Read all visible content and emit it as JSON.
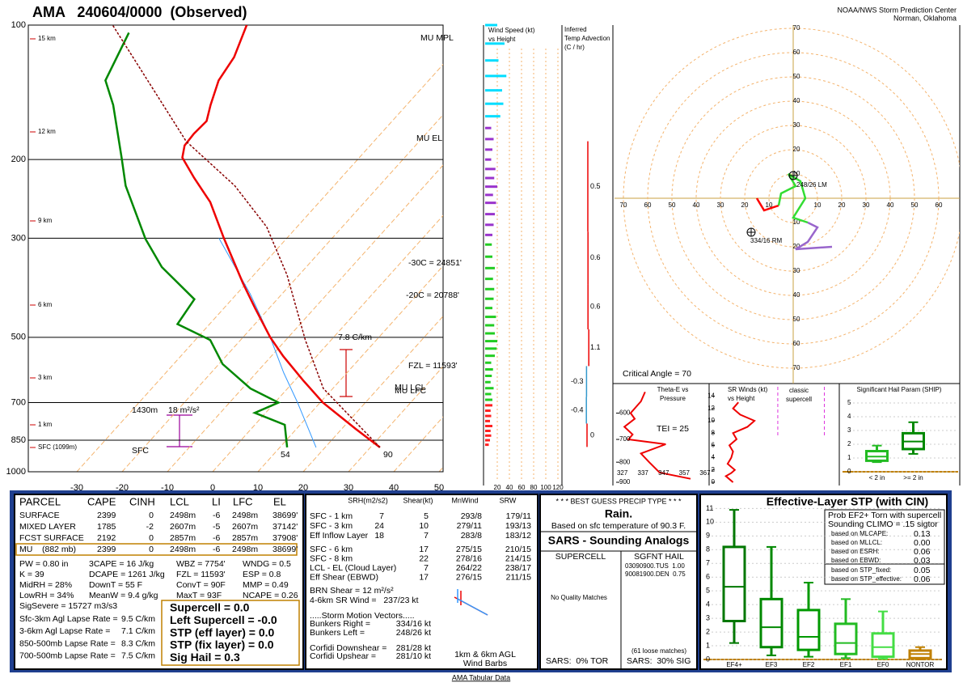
{
  "header": {
    "title": "AMA   240604/0000  (Observed)",
    "credit_1": "NOAA/NWS Storm Prediction Center",
    "credit_2": "Norman, Oklahoma"
  },
  "chart_data": [
    {
      "type": "skewt",
      "log_scale": true,
      "ylim": [
        1000,
        100
      ],
      "yticks": [
        100,
        200,
        300,
        500,
        700,
        850,
        1000
      ],
      "xlim": [
        -40,
        50
      ],
      "xticks": [
        -30,
        -20,
        -10,
        0,
        10,
        20,
        30,
        40,
        50
      ],
      "grid": true,
      "series": [
        {
          "color": "#3399ff",
          "width": 1,
          "y": [
            882,
            700,
            600,
            500,
            400,
            300
          ],
          "x": [
            18,
            5,
            -4,
            -14,
            -27,
            -45
          ]
        },
        {
          "color": "#ee0000",
          "width": 2.5,
          "y": [
            882,
            802,
            700,
            624,
            551,
            500,
            429,
            378,
            300,
            249,
            220,
            198,
            186,
            175,
            164,
            151,
            133,
            118,
            100
          ],
          "x": [
            32.1,
            23.1,
            10.6,
            1.8,
            -7.4,
            -14.0,
            -23.3,
            -30.8,
            -43.9,
            -54.1,
            -62.4,
            -69.1,
            -71.0,
            -71.3,
            -71.0,
            -73.3,
            -76.4,
            -77.6,
            -81.2
          ]
        },
        {
          "color": "#008800",
          "width": 2.5,
          "y": [
            882,
            785,
            738,
            700,
            651,
            574,
            507,
            467,
            411,
            348,
            301,
            229,
            198,
            151,
            133,
            104
          ],
          "x": [
            11.6,
            6.6,
            -2.4,
            0.8,
            -8.2,
            -19.2,
            -26.7,
            -37.1,
            -38.3,
            -51.9,
            -61.1,
            -76.0,
            -82.5,
            -94.8,
            -101.4,
            -105.7
          ]
        },
        {
          "color": "#880000",
          "width": 1.5,
          "dash": true,
          "y": [
            882,
            651,
            507,
            363,
            283,
            229,
            182,
            100
          ],
          "x": [
            32.1,
            7.9,
            -5.7,
            -22.6,
            -36.7,
            -51.9,
            -71.5,
            -110.8
          ]
        }
      ],
      "height_labels": [
        "15 km",
        "12 km",
        "9 km",
        "6 km",
        "3 km",
        "1 km",
        "SFC (1099m)"
      ],
      "annotations": [
        "MU MPL",
        "MU EL",
        "MU LFC",
        "MU LCL",
        "-30C = 24851'",
        "-20C = 20788'",
        "FZL = 11593'",
        "7.8 C/km",
        "1430m",
        "18 m²/s²",
        "SFC",
        "54",
        "90"
      ]
    },
    {
      "type": "hbar",
      "title": [
        "Wind Speed (kt)",
        "vs Height"
      ],
      "xlim": [
        0,
        120
      ],
      "xticks": [
        20,
        40,
        60,
        80,
        100,
        120
      ],
      "log_scale": true,
      "ylim": [
        1000,
        100
      ],
      "series": [
        {
          "color": "#ff2020",
          "levels": [
            870,
            850,
            830,
            810,
            790,
            770,
            750,
            730,
            710
          ],
          "values": [
            6,
            8,
            10,
            9,
            12,
            8,
            10,
            9,
            12
          ]
        },
        {
          "color": "#22cc22",
          "levels": [
            690,
            670,
            650,
            630,
            610,
            590,
            570,
            550,
            530,
            510,
            490,
            470,
            450,
            430,
            410,
            390,
            370,
            350,
            330,
            310
          ],
          "values": [
            12,
            10,
            14,
            9,
            11,
            13,
            10,
            16,
            19,
            20,
            16,
            15,
            18,
            12,
            14,
            15,
            13,
            16,
            12,
            11
          ]
        },
        {
          "color": "#9933cc",
          "levels": [
            295,
            280,
            265,
            250,
            240,
            230,
            220,
            210,
            200,
            190,
            180,
            170
          ],
          "values": [
            12,
            14,
            16,
            18,
            13,
            20,
            15,
            17,
            10,
            12,
            14,
            10
          ]
        },
        {
          "color": "#00ddff",
          "levels": [
            160,
            150,
            140,
            130,
            120,
            110,
            100
          ],
          "values": [
            25,
            30,
            28,
            35,
            22,
            32,
            20
          ]
        }
      ]
    },
    {
      "type": "advection",
      "title": [
        "Inferred",
        "Temp Advection",
        "(C / hr)"
      ],
      "log_scale": true,
      "ylim": [
        1000,
        100
      ],
      "layers": [
        [
          182,
          290
        ],
        [
          290,
          380
        ],
        [
          380,
          480
        ],
        [
          480,
          580
        ],
        [
          580,
          680
        ],
        [
          680,
          780
        ],
        [
          780,
          880
        ]
      ],
      "values": [
        0.5,
        0.6,
        0.6,
        1.1,
        -0.3,
        -0.4,
        0.0
      ],
      "positive_color": "#ee0000",
      "negative_color": "#3399cc"
    },
    {
      "type": "hodograph",
      "ticks": [
        10,
        20,
        30,
        40,
        50,
        60,
        70
      ],
      "series": [
        {
          "color": "#ff0000",
          "u": [
            -15,
            -12,
            -6
          ],
          "v": [
            0,
            -5,
            -3
          ]
        },
        {
          "color": "#33dd33",
          "u": [
            -6,
            -5,
            1,
            -2,
            3,
            5,
            0,
            6
          ],
          "v": [
            -3,
            2,
            5,
            10,
            7,
            0,
            -8,
            -10
          ]
        },
        {
          "color": "#9966cc",
          "u": [
            6,
            10,
            6,
            1,
            16
          ],
          "v": [
            -10,
            -12,
            -18,
            -21,
            -20
          ]
        }
      ],
      "annotations": [
        "248/26 LM",
        "334/16 RM",
        "Critical Angle = 70"
      ]
    },
    {
      "type": "line",
      "title": [
        "Theta-E vs",
        "Pressure"
      ],
      "xlim": [
        324,
        369
      ],
      "xticks": [
        327,
        337,
        347,
        357,
        367
      ],
      "log_scale": true,
      "ylim": [
        900,
        524
      ],
      "yticks": [
        600,
        700,
        800,
        900
      ],
      "series": [
        {
          "color": "#ee0000",
          "y": [
            882,
            850,
            800,
            760,
            720,
            700,
            680,
            650,
            620,
            600,
            560,
            530
          ],
          "x": [
            360,
            345,
            340,
            336,
            348,
            330,
            332,
            328,
            333,
            331,
            336,
            338
          ]
        }
      ],
      "annotation": "TEI = 25"
    },
    {
      "type": "line",
      "title": [
        "SR Winds (kt)",
        "vs Height"
      ],
      "xlim": [
        0,
        70
      ],
      "ylim": [
        0,
        15
      ],
      "yticks": [
        0,
        2,
        4,
        6,
        8,
        10,
        12,
        14
      ],
      "series": [
        {
          "color": "#ee0000",
          "y": [
            0,
            0.5,
            1,
            1.5,
            2,
            3,
            4,
            5,
            6,
            7,
            8,
            9,
            10,
            11,
            12,
            13
          ],
          "x": [
            12,
            10,
            8,
            11,
            13,
            9,
            11,
            12,
            10,
            14,
            12,
            20,
            24,
            16,
            12,
            15
          ]
        }
      ],
      "classic_supercell_kt": [
        37,
        63
      ],
      "annotation": [
        "classic",
        "supercell"
      ]
    },
    {
      "type": "boxplot",
      "title": "Significant Hail Param (SHIP)",
      "categories": [
        "< 2 in",
        ">= 2 in"
      ],
      "ylim": [
        0,
        6
      ],
      "yticks": [
        0,
        1,
        2,
        3,
        4,
        5
      ],
      "low": [
        0.7,
        1.3
      ],
      "q1": [
        0.8,
        1.65
      ],
      "median": [
        1.1,
        2.2
      ],
      "q3": [
        1.5,
        2.8
      ],
      "high": [
        1.9,
        3.6
      ],
      "colors": [
        "#22bb22",
        "#008800"
      ]
    },
    {
      "type": "boxplot",
      "title": "Effective-Layer STP (with CIN)",
      "categories": [
        "EF4+",
        "EF3",
        "EF2",
        "EF1",
        "EF0",
        "NONTOR"
      ],
      "ylim": [
        0,
        11.2
      ],
      "yticks": [
        0,
        1,
        2,
        3,
        4,
        5,
        6,
        7,
        8,
        9,
        10,
        11
      ],
      "low": [
        1.2,
        0.3,
        0.2,
        0.1,
        0.05,
        0
      ],
      "q1": [
        2.8,
        0.9,
        0.7,
        0.4,
        0.2,
        0.1
      ],
      "median": [
        5.3,
        2.35,
        1.65,
        1.2,
        0.9,
        0.4
      ],
      "q3": [
        8.2,
        4.4,
        3.6,
        2.6,
        1.9,
        0.65
      ],
      "high": [
        10.9,
        8.2,
        5.6,
        4.4,
        3.5,
        0.9
      ],
      "colors": [
        "#007700",
        "#008800",
        "#009900",
        "#22bb22",
        "#44dd44",
        "#c08000"
      ]
    }
  ],
  "parcel_table": {
    "header": [
      "PARCEL",
      "CAPE",
      "CINH",
      "LCL",
      "LI",
      "LFC",
      "EL"
    ],
    "rows": [
      [
        "SURFACE",
        "2399",
        "0",
        "2498m",
        "-6",
        "2498m",
        "38699'"
      ],
      [
        "MIXED LAYER",
        "1785",
        "-2",
        "2607m",
        "-5",
        "2607m",
        "37142'"
      ],
      [
        "FCST SURFACE",
        "2192",
        "0",
        "2857m",
        "-6",
        "2857m",
        "37908'"
      ],
      [
        "MU    (882 mb)",
        "2399",
        "0",
        "2498m",
        "-6",
        "2498m",
        "38699'"
      ]
    ]
  },
  "indices": [
    [
      "PW = 0.80 in",
      "3CAPE = 16 J/kg",
      "WBZ = 7754'",
      "WNDG = 0.5"
    ],
    [
      "K = 39",
      "DCAPE = 1261 J/kg",
      "FZL = 11593'",
      "ESP = 0.8"
    ],
    [
      "MidRH = 28%",
      "DownT = 55 F",
      "ConvT = 90F",
      "MMP = 0.49"
    ],
    [
      "LowRH = 34%",
      "MeanW = 9.4 g/kg",
      "MaxT = 93F",
      "NCAPE = 0.26"
    ],
    [
      "SigSevere = 15727 m3/s3"
    ]
  ],
  "lapse_rates": [
    [
      "Sfc-3km Agl Lapse Rate =",
      "9.5 C/km"
    ],
    [
      "3-6km Agl Lapse Rate =",
      "7.1 C/km"
    ],
    [
      "850-500mb Lapse Rate =",
      "8.3 C/km"
    ],
    [
      "700-500mb Lapse Rate =",
      "7.5 C/km"
    ]
  ],
  "severe": [
    "Supercell = 0.0",
    "Left Supercell = -0.0",
    "STP (eff layer) = 0.0",
    "STP (fix layer) = 0.0",
    "Sig Hail = 0.3"
  ],
  "kinematics": {
    "header": [
      "SRH(m2/s2)",
      "Shear(kt)",
      "MnWind",
      "SRW"
    ],
    "rows_a": [
      [
        "SFC - 1 km",
        "7",
        "5",
        "293/8",
        "179/11"
      ],
      [
        "SFC - 3 km",
        "24",
        "10",
        "279/11",
        "193/13"
      ],
      [
        "Eff Inflow Layer",
        "18",
        "7",
        "283/8",
        "183/12"
      ]
    ],
    "rows_b": [
      [
        "SFC - 6 km",
        "17",
        "275/15",
        "210/15"
      ],
      [
        "SFC - 8 km",
        "22",
        "278/16",
        "214/15"
      ],
      [
        "LCL - EL (Cloud Layer)",
        "7",
        "264/22",
        "238/17"
      ],
      [
        "Eff Shear (EBWD)",
        "17",
        "276/15",
        "211/15"
      ]
    ],
    "brn": "BRN Shear = 12 m²/s²",
    "sr_wind": "4-6km SR Wind =   237/23 kt",
    "vectors_title": ".....Storm Motion Vectors.....",
    "vectors": [
      [
        "Bunkers Right =",
        "334/16 kt"
      ],
      [
        "Bunkers Left =",
        "248/26 kt"
      ],
      [
        "Corfidi Downshear =",
        "281/28 kt"
      ],
      [
        "Corfidi Upshear =",
        "281/10 kt"
      ]
    ],
    "barbs_note": [
      "1km & 6km AGL",
      "Wind Barbs"
    ]
  },
  "precip": {
    "title": "* * * BEST GUESS PRECIP TYPE * * *",
    "type": "Rain.",
    "note": "Based on sfc temperature of 90.3 F."
  },
  "sars": {
    "title": "SARS - Sounding Analogs",
    "supercell": "SUPERCELL",
    "hail": "SGFNT HAIL",
    "hail_matches": [
      "03090900.TUS  1.00",
      "90081900.DEN  0.75"
    ],
    "supercell_note": "No Quality Matches",
    "hail_note": "(61 loose matches)",
    "tor": "SARS:  0% TOR",
    "sig": "SARS:  30% SIG"
  },
  "stp_legend": {
    "lines": [
      "Prob EF2+ Torn with supercell",
      "Sounding CLIMO = .15 sigtor"
    ],
    "rows": [
      [
        "based on MLCAPE:",
        "0.13"
      ],
      [
        "based on MLLCL:",
        "0.00"
      ],
      [
        "based on ESRH:",
        "0.06"
      ],
      [
        "based on EBWD:",
        "0.03"
      ],
      [
        "based on STP_fixed:",
        "0.05"
      ],
      [
        "based on STP_effective:",
        "0.06"
      ]
    ]
  },
  "footer": "AMA Tabular Data"
}
